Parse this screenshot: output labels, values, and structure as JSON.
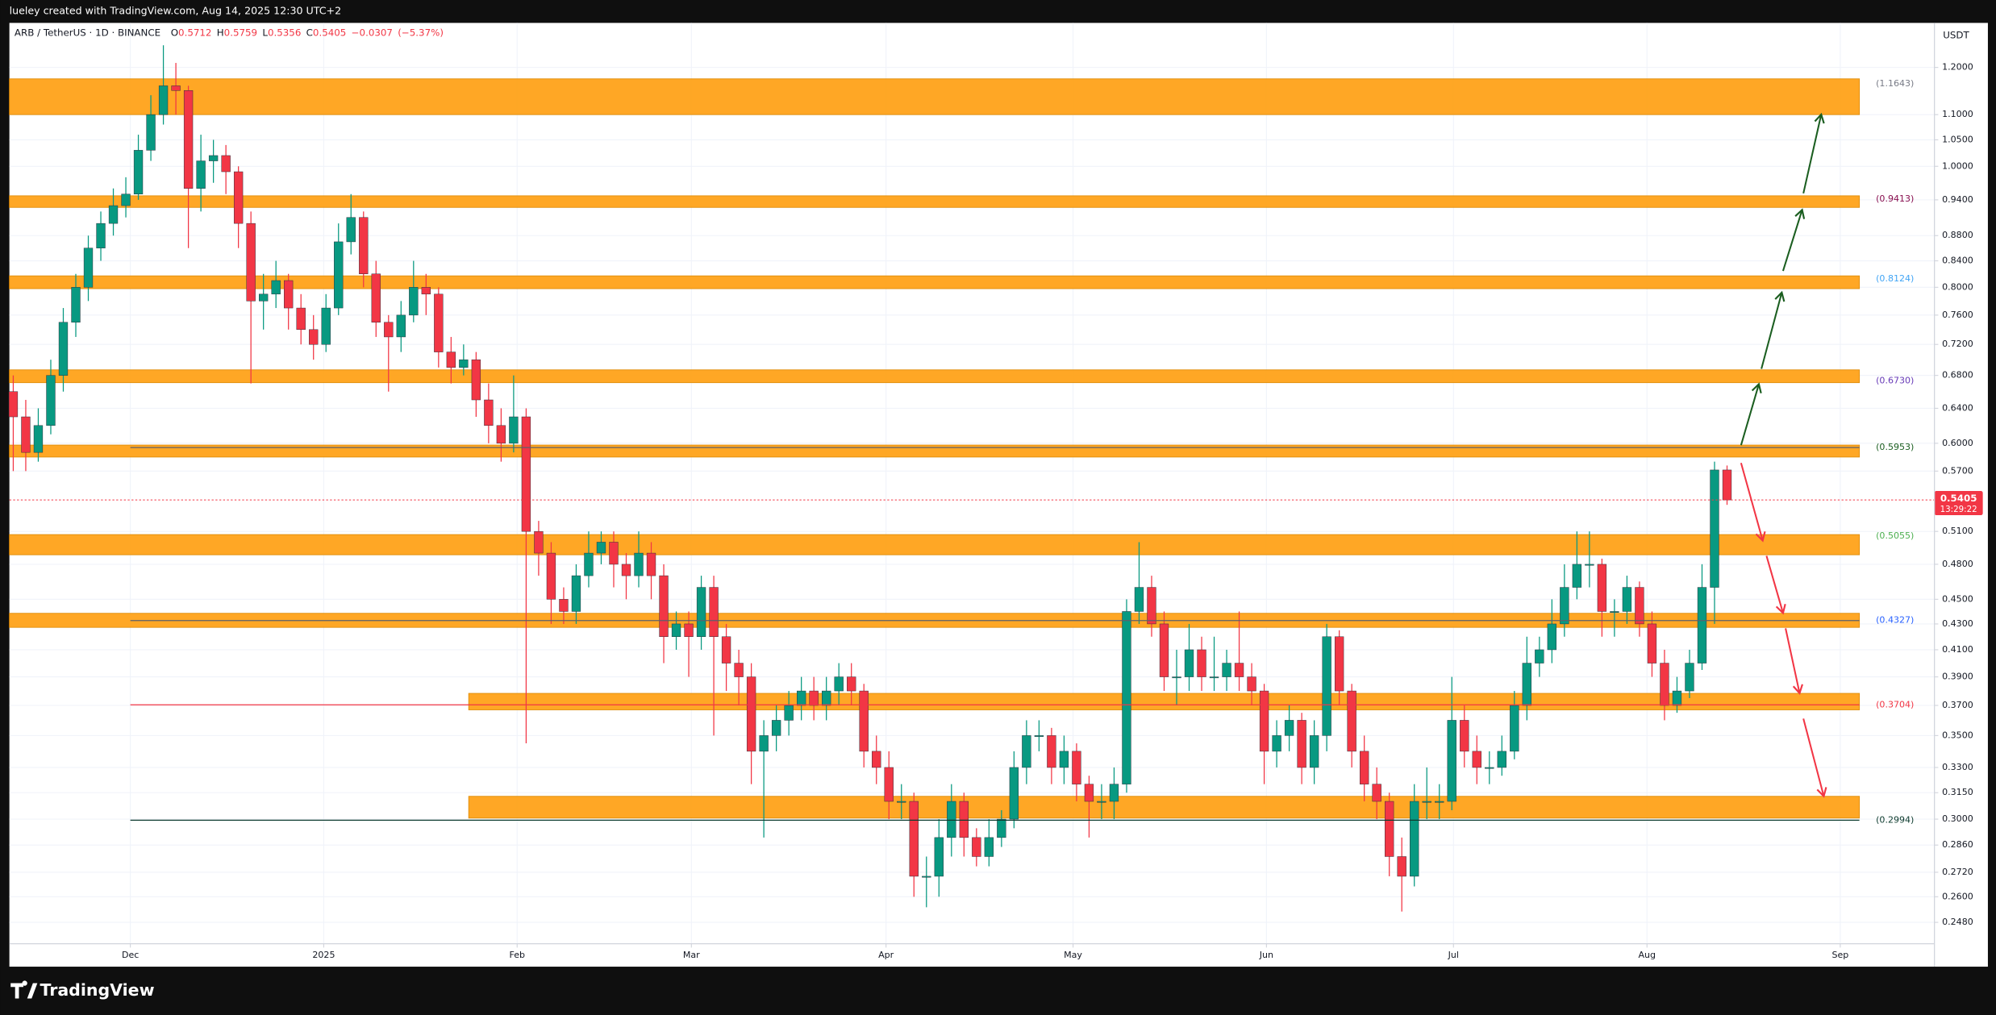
{
  "chart_data": {
    "type": "candlestick",
    "credit": "lueley created with TradingView.com, Aug 14, 2025 12:30 UTC+2",
    "title": "ARB / TetherUS · 1D · BINANCE",
    "ohlc_legend": [
      {
        "label": "O",
        "value": 0.5712
      },
      {
        "label": "H",
        "value": 0.5759
      },
      {
        "label": "L",
        "value": 0.5356
      },
      {
        "label": "C",
        "value": 0.5405
      }
    ],
    "change": {
      "value": -0.0307,
      "label": "−0.0307"
    },
    "change_pct": {
      "value": -5.37,
      "label": "(−5.37%)"
    },
    "currency": "USDT",
    "brand": "TradingView",
    "log_scale": true,
    "grid": true,
    "up_color": "#089981",
    "down_color": "#f23645",
    "zone_color": "#ffa31a",
    "ylim": [
      0.2384,
      1.3027
    ],
    "yticks": [
      {
        "value": 1.2,
        "label": "1.2000"
      },
      {
        "value": 1.1,
        "label": "1.1000"
      },
      {
        "value": 1.05,
        "label": "1.0500"
      },
      {
        "value": 1.0,
        "label": "1.0000"
      },
      {
        "value": 0.94,
        "label": "0.9400"
      },
      {
        "value": 0.88,
        "label": "0.8800"
      },
      {
        "value": 0.84,
        "label": "0.8400"
      },
      {
        "value": 0.8,
        "label": "0.8000"
      },
      {
        "value": 0.76,
        "label": "0.7600"
      },
      {
        "value": 0.72,
        "label": "0.7200"
      },
      {
        "value": 0.68,
        "label": "0.6800"
      },
      {
        "value": 0.64,
        "label": "0.6400"
      },
      {
        "value": 0.6,
        "label": "0.6000"
      },
      {
        "value": 0.57,
        "label": "0.5700"
      },
      {
        "value": 0.51,
        "label": "0.5100"
      },
      {
        "value": 0.48,
        "label": "0.4800"
      },
      {
        "value": 0.45,
        "label": "0.4500"
      },
      {
        "value": 0.43,
        "label": "0.4300"
      },
      {
        "value": 0.41,
        "label": "0.4100"
      },
      {
        "value": 0.39,
        "label": "0.3900"
      },
      {
        "value": 0.37,
        "label": "0.3700"
      },
      {
        "value": 0.35,
        "label": "0.3500"
      },
      {
        "value": 0.33,
        "label": "0.3300"
      },
      {
        "value": 0.315,
        "label": "0.3150"
      },
      {
        "value": 0.3,
        "label": "0.3000"
      },
      {
        "value": 0.286,
        "label": "0.2860"
      },
      {
        "value": 0.272,
        "label": "0.2720"
      },
      {
        "value": 0.26,
        "label": "0.2600"
      },
      {
        "value": 0.248,
        "label": "0.2480"
      }
    ],
    "xlim": [
      -0.31,
      153.58
    ],
    "xticks": [
      {
        "value": 9.36,
        "label": "Dec"
      },
      {
        "value": 24.82,
        "label": "2025"
      },
      {
        "value": 40.28,
        "label": "Feb"
      },
      {
        "value": 54.21,
        "label": "Mar"
      },
      {
        "value": 69.77,
        "label": "Apr"
      },
      {
        "value": 84.72,
        "label": "May"
      },
      {
        "value": 100.18,
        "label": "Jun"
      },
      {
        "value": 115.13,
        "label": "Jul"
      },
      {
        "value": 130.6,
        "label": "Aug"
      },
      {
        "value": 146.05,
        "label": "Sep"
      }
    ],
    "last_price": 0.5405,
    "countdown": "13:29:22",
    "zone_end": 147.58,
    "zones": [
      {
        "value": 1.1643,
        "label": "(1.1643)",
        "top": 1.175,
        "bottom": 1.1,
        "color": "#787b86"
      },
      {
        "value": 0.9413,
        "label": "(0.9413)",
        "top": 0.947,
        "bottom": 0.927,
        "color": "#880e4f"
      },
      {
        "value": 0.8124,
        "label": "(0.8124)",
        "top": 0.817,
        "bottom": 0.798,
        "color": "#42a5f5"
      },
      {
        "value": 0.673,
        "label": "(0.6730)",
        "top": 0.687,
        "bottom": 0.671,
        "color": "#673ab7"
      },
      {
        "value": 0.5953,
        "label": "(0.5953)",
        "top": 0.598,
        "bottom": 0.585,
        "color": "#1b5e20",
        "line_start": 9.36,
        "line_color": "#5d606b"
      },
      {
        "value": 0.5055,
        "label": "(0.5055)",
        "top": 0.507,
        "bottom": 0.4885,
        "color": "#4caf50"
      },
      {
        "value": 0.4327,
        "label": "(0.4327)",
        "top": 0.4385,
        "bottom": 0.4273,
        "color": "#2962ff",
        "line_start": 9.36,
        "line_color": "#5d606b"
      },
      {
        "value": 0.3704,
        "label": "(0.3704)",
        "top": 0.3783,
        "bottom": 0.367,
        "color": "#f23645",
        "start": 36.41,
        "line_start": 9.36,
        "line_color": "#f23645"
      },
      {
        "value": 0.2994,
        "label": "(0.2994)",
        "top": 0.3129,
        "bottom": 0.3006,
        "color": "#0d3b2e",
        "start": 36.41,
        "line_start": 9.36,
        "line_color": "#0d3b2e"
      }
    ],
    "candles": [
      [
        0.66,
        0.68,
        0.57,
        0.63
      ],
      [
        0.63,
        0.65,
        0.57,
        0.59
      ],
      [
        0.59,
        0.64,
        0.58,
        0.62
      ],
      [
        0.62,
        0.7,
        0.61,
        0.68
      ],
      [
        0.68,
        0.77,
        0.66,
        0.75
      ],
      [
        0.75,
        0.82,
        0.73,
        0.8
      ],
      [
        0.8,
        0.88,
        0.78,
        0.86
      ],
      [
        0.86,
        0.92,
        0.84,
        0.9
      ],
      [
        0.9,
        0.96,
        0.88,
        0.93
      ],
      [
        0.93,
        0.98,
        0.91,
        0.95
      ],
      [
        0.95,
        1.06,
        0.94,
        1.03
      ],
      [
        1.03,
        1.14,
        1.01,
        1.1
      ],
      [
        1.1,
        1.25,
        1.08,
        1.16
      ],
      [
        1.16,
        1.21,
        1.1,
        1.15
      ],
      [
        1.15,
        1.16,
        0.86,
        0.96
      ],
      [
        0.96,
        1.06,
        0.92,
        1.01
      ],
      [
        1.01,
        1.05,
        0.97,
        1.02
      ],
      [
        1.02,
        1.04,
        0.95,
        0.99
      ],
      [
        0.99,
        1.0,
        0.86,
        0.9
      ],
      [
        0.9,
        0.92,
        0.67,
        0.78
      ],
      [
        0.78,
        0.82,
        0.74,
        0.79
      ],
      [
        0.79,
        0.84,
        0.77,
        0.81
      ],
      [
        0.81,
        0.82,
        0.74,
        0.77
      ],
      [
        0.77,
        0.79,
        0.72,
        0.74
      ],
      [
        0.74,
        0.76,
        0.7,
        0.72
      ],
      [
        0.72,
        0.79,
        0.71,
        0.77
      ],
      [
        0.77,
        0.9,
        0.76,
        0.87
      ],
      [
        0.87,
        0.95,
        0.85,
        0.91
      ],
      [
        0.91,
        0.92,
        0.8,
        0.82
      ],
      [
        0.82,
        0.84,
        0.73,
        0.75
      ],
      [
        0.75,
        0.76,
        0.66,
        0.73
      ],
      [
        0.73,
        0.78,
        0.71,
        0.76
      ],
      [
        0.76,
        0.84,
        0.75,
        0.8
      ],
      [
        0.8,
        0.82,
        0.76,
        0.79
      ],
      [
        0.79,
        0.8,
        0.69,
        0.71
      ],
      [
        0.71,
        0.73,
        0.67,
        0.69
      ],
      [
        0.69,
        0.72,
        0.68,
        0.7
      ],
      [
        0.7,
        0.71,
        0.63,
        0.65
      ],
      [
        0.65,
        0.67,
        0.6,
        0.62
      ],
      [
        0.62,
        0.64,
        0.58,
        0.6
      ],
      [
        0.6,
        0.68,
        0.59,
        0.63
      ],
      [
        0.63,
        0.64,
        0.345,
        0.51
      ],
      [
        0.51,
        0.52,
        0.47,
        0.49
      ],
      [
        0.49,
        0.5,
        0.43,
        0.45
      ],
      [
        0.45,
        0.46,
        0.43,
        0.44
      ],
      [
        0.44,
        0.48,
        0.43,
        0.47
      ],
      [
        0.47,
        0.51,
        0.46,
        0.49
      ],
      [
        0.49,
        0.51,
        0.48,
        0.5
      ],
      [
        0.5,
        0.51,
        0.46,
        0.48
      ],
      [
        0.48,
        0.49,
        0.45,
        0.47
      ],
      [
        0.47,
        0.51,
        0.46,
        0.49
      ],
      [
        0.49,
        0.5,
        0.45,
        0.47
      ],
      [
        0.47,
        0.48,
        0.4,
        0.42
      ],
      [
        0.42,
        0.44,
        0.41,
        0.43
      ],
      [
        0.43,
        0.44,
        0.39,
        0.42
      ],
      [
        0.42,
        0.47,
        0.41,
        0.46
      ],
      [
        0.46,
        0.47,
        0.35,
        0.42
      ],
      [
        0.42,
        0.43,
        0.38,
        0.4
      ],
      [
        0.4,
        0.41,
        0.37,
        0.39
      ],
      [
        0.39,
        0.4,
        0.32,
        0.34
      ],
      [
        0.34,
        0.36,
        0.29,
        0.35
      ],
      [
        0.35,
        0.37,
        0.34,
        0.36
      ],
      [
        0.36,
        0.38,
        0.35,
        0.37
      ],
      [
        0.37,
        0.39,
        0.36,
        0.38
      ],
      [
        0.38,
        0.39,
        0.36,
        0.37
      ],
      [
        0.37,
        0.39,
        0.36,
        0.38
      ],
      [
        0.38,
        0.4,
        0.37,
        0.39
      ],
      [
        0.39,
        0.4,
        0.37,
        0.38
      ],
      [
        0.38,
        0.385,
        0.33,
        0.34
      ],
      [
        0.34,
        0.35,
        0.32,
        0.33
      ],
      [
        0.33,
        0.34,
        0.3,
        0.31
      ],
      [
        0.31,
        0.32,
        0.3,
        0.31
      ],
      [
        0.31,
        0.315,
        0.26,
        0.27
      ],
      [
        0.27,
        0.28,
        0.255,
        0.27
      ],
      [
        0.27,
        0.3,
        0.26,
        0.29
      ],
      [
        0.29,
        0.32,
        0.28,
        0.31
      ],
      [
        0.31,
        0.315,
        0.28,
        0.29
      ],
      [
        0.29,
        0.295,
        0.275,
        0.28
      ],
      [
        0.28,
        0.3,
        0.275,
        0.29
      ],
      [
        0.29,
        0.305,
        0.285,
        0.3
      ],
      [
        0.3,
        0.34,
        0.295,
        0.33
      ],
      [
        0.33,
        0.36,
        0.32,
        0.35
      ],
      [
        0.35,
        0.36,
        0.34,
        0.35
      ],
      [
        0.35,
        0.355,
        0.32,
        0.33
      ],
      [
        0.33,
        0.35,
        0.32,
        0.34
      ],
      [
        0.34,
        0.345,
        0.31,
        0.32
      ],
      [
        0.32,
        0.325,
        0.29,
        0.31
      ],
      [
        0.31,
        0.32,
        0.3,
        0.31
      ],
      [
        0.31,
        0.33,
        0.3,
        0.32
      ],
      [
        0.32,
        0.45,
        0.315,
        0.44
      ],
      [
        0.44,
        0.5,
        0.43,
        0.46
      ],
      [
        0.46,
        0.47,
        0.42,
        0.43
      ],
      [
        0.43,
        0.44,
        0.38,
        0.39
      ],
      [
        0.39,
        0.41,
        0.37,
        0.39
      ],
      [
        0.39,
        0.43,
        0.38,
        0.41
      ],
      [
        0.41,
        0.42,
        0.38,
        0.39
      ],
      [
        0.39,
        0.42,
        0.38,
        0.39
      ],
      [
        0.39,
        0.41,
        0.38,
        0.4
      ],
      [
        0.4,
        0.44,
        0.38,
        0.39
      ],
      [
        0.39,
        0.4,
        0.37,
        0.38
      ],
      [
        0.38,
        0.385,
        0.32,
        0.34
      ],
      [
        0.34,
        0.36,
        0.33,
        0.35
      ],
      [
        0.35,
        0.37,
        0.34,
        0.36
      ],
      [
        0.36,
        0.365,
        0.32,
        0.33
      ],
      [
        0.33,
        0.36,
        0.32,
        0.35
      ],
      [
        0.35,
        0.43,
        0.34,
        0.42
      ],
      [
        0.42,
        0.425,
        0.37,
        0.38
      ],
      [
        0.38,
        0.385,
        0.33,
        0.34
      ],
      [
        0.34,
        0.35,
        0.31,
        0.32
      ],
      [
        0.32,
        0.33,
        0.3,
        0.31
      ],
      [
        0.31,
        0.315,
        0.27,
        0.28
      ],
      [
        0.28,
        0.29,
        0.253,
        0.27
      ],
      [
        0.27,
        0.32,
        0.265,
        0.31
      ],
      [
        0.31,
        0.33,
        0.3,
        0.31
      ],
      [
        0.31,
        0.32,
        0.3,
        0.31
      ],
      [
        0.31,
        0.39,
        0.305,
        0.36
      ],
      [
        0.36,
        0.37,
        0.33,
        0.34
      ],
      [
        0.34,
        0.35,
        0.32,
        0.33
      ],
      [
        0.33,
        0.34,
        0.32,
        0.33
      ],
      [
        0.33,
        0.35,
        0.325,
        0.34
      ],
      [
        0.34,
        0.38,
        0.335,
        0.37
      ],
      [
        0.37,
        0.42,
        0.36,
        0.4
      ],
      [
        0.4,
        0.42,
        0.39,
        0.41
      ],
      [
        0.41,
        0.45,
        0.4,
        0.43
      ],
      [
        0.43,
        0.48,
        0.42,
        0.46
      ],
      [
        0.46,
        0.51,
        0.45,
        0.48
      ],
      [
        0.48,
        0.51,
        0.46,
        0.48
      ],
      [
        0.48,
        0.485,
        0.42,
        0.44
      ],
      [
        0.44,
        0.45,
        0.42,
        0.44
      ],
      [
        0.44,
        0.47,
        0.43,
        0.46
      ],
      [
        0.46,
        0.465,
        0.42,
        0.43
      ],
      [
        0.43,
        0.44,
        0.39,
        0.4
      ],
      [
        0.4,
        0.41,
        0.36,
        0.37
      ],
      [
        0.37,
        0.39,
        0.365,
        0.38
      ],
      [
        0.38,
        0.41,
        0.375,
        0.4
      ],
      [
        0.4,
        0.48,
        0.395,
        0.46
      ],
      [
        0.46,
        0.58,
        0.43,
        0.5712
      ],
      [
        0.5712,
        0.5759,
        0.5356,
        0.5405
      ]
    ]
  }
}
